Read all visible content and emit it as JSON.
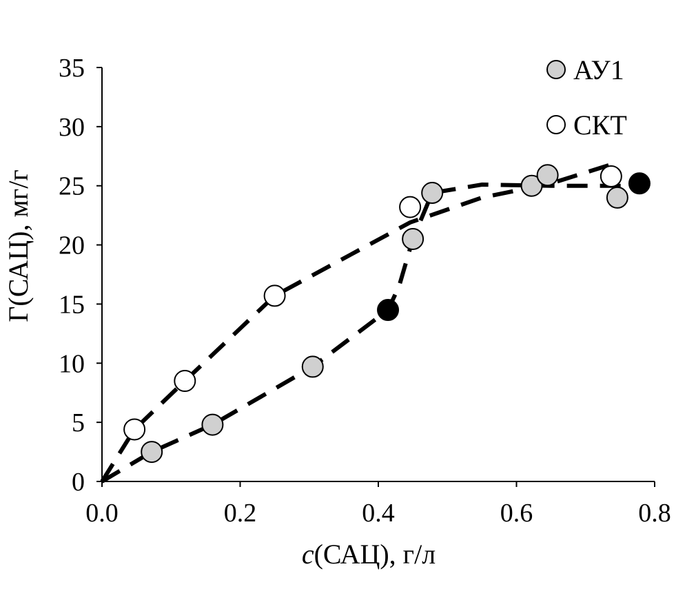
{
  "chart_data": {
    "type": "scatter",
    "xlabel_italic": "c",
    "xlabel_rest": "(САЦ), г/л",
    "ylabel": "Г(САЦ), мг/г",
    "xlim": [
      0,
      0.8
    ],
    "ylim": [
      0,
      35
    ],
    "x_ticks": [
      "0.0",
      "0.2",
      "0.4",
      "0.6",
      "0.8"
    ],
    "y_ticks": [
      "0",
      "5",
      "10",
      "15",
      "20",
      "25",
      "30",
      "35"
    ],
    "legend_position": "top-right",
    "series": [
      {
        "name": "АУ1",
        "color": "#d0d0d0",
        "points": [
          {
            "x": 0.072,
            "y": 2.5
          },
          {
            "x": 0.16,
            "y": 4.8
          },
          {
            "x": 0.305,
            "y": 9.7
          },
          {
            "x": 0.45,
            "y": 20.5
          },
          {
            "x": 0.478,
            "y": 24.4
          },
          {
            "x": 0.622,
            "y": 25.0
          },
          {
            "x": 0.645,
            "y": 25.9
          },
          {
            "x": 0.746,
            "y": 24.0
          }
        ]
      },
      {
        "name": "СКТ",
        "color": "#ffffff",
        "points": [
          {
            "x": 0.047,
            "y": 4.4
          },
          {
            "x": 0.12,
            "y": 8.5
          },
          {
            "x": 0.25,
            "y": 15.7
          },
          {
            "x": 0.446,
            "y": 23.2
          },
          {
            "x": 0.737,
            "y": 25.8
          }
        ]
      },
      {
        "color": "#000000",
        "points": [
          {
            "x": 0.414,
            "y": 14.5
          },
          {
            "x": 0.778,
            "y": 25.2
          }
        ]
      }
    ],
    "trend_lines": [
      {
        "points": [
          {
            "x": 0.0,
            "y": 0.0
          },
          {
            "x": 0.072,
            "y": 2.5
          },
          {
            "x": 0.16,
            "y": 4.8
          },
          {
            "x": 0.305,
            "y": 9.7
          },
          {
            "x": 0.414,
            "y": 14.5
          },
          {
            "x": 0.43,
            "y": 16.5
          },
          {
            "x": 0.45,
            "y": 20.5
          },
          {
            "x": 0.478,
            "y": 24.4
          },
          {
            "x": 0.55,
            "y": 25.1
          },
          {
            "x": 0.65,
            "y": 25.0
          },
          {
            "x": 0.778,
            "y": 25.0
          }
        ]
      },
      {
        "points": [
          {
            "x": 0.0,
            "y": 0.0
          },
          {
            "x": 0.047,
            "y": 4.4
          },
          {
            "x": 0.12,
            "y": 8.5
          },
          {
            "x": 0.25,
            "y": 15.7
          },
          {
            "x": 0.446,
            "y": 21.9
          },
          {
            "x": 0.55,
            "y": 24.0
          },
          {
            "x": 0.65,
            "y": 25.2
          },
          {
            "x": 0.737,
            "y": 26.8
          }
        ]
      }
    ]
  }
}
